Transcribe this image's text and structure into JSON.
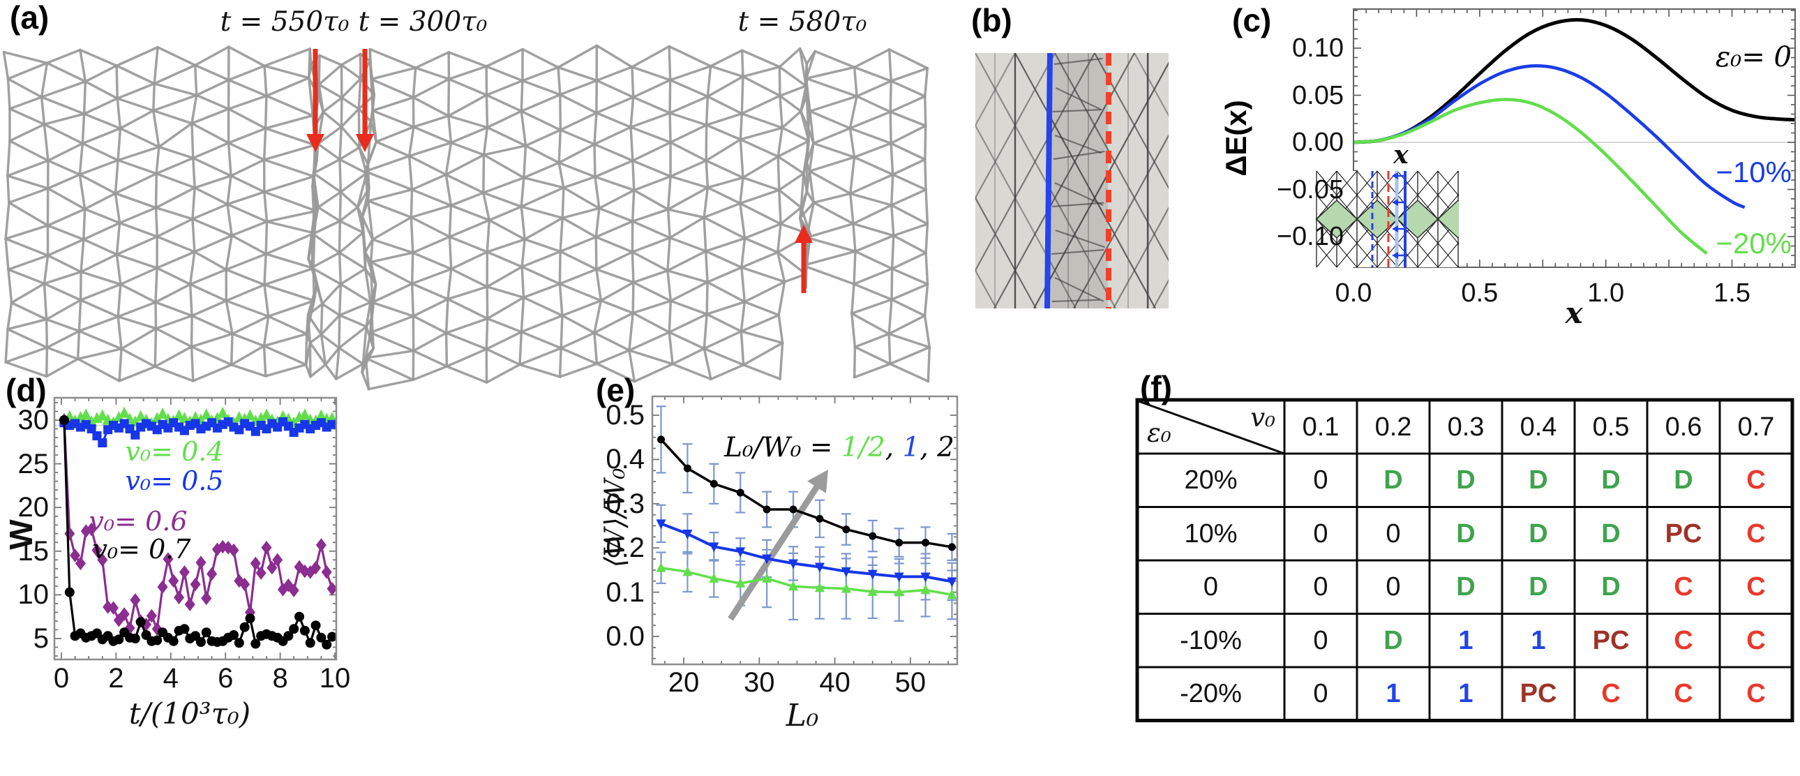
{
  "figure": {
    "background": "#ffffff"
  },
  "panels": {
    "a": {
      "label": "(a)",
      "time_labels": [
        "t = 550τ₀",
        "t = 300τ₀",
        "t = 580τ₀"
      ],
      "mesh_color": "#9a9a9a",
      "arrow_color": "#e82c1d"
    },
    "b": {
      "label": "(b)",
      "solid_line_color": "#2543ee",
      "dashed_line_color": "#f2402a",
      "paper_color": "#d9d8d3",
      "crease_color": "#474747"
    },
    "c": {
      "label": "(c)",
      "ylabel": "ΔE(x)",
      "xlabel": "x",
      "curve_labels": [
        {
          "text": "ε₀= 0",
          "color": "#000000"
        },
        {
          "text": "−10%",
          "color": "#1a3ce8"
        },
        {
          "text": "−20%",
          "color": "#62de4c"
        }
      ],
      "inset": {
        "x_marker_label": "x",
        "diamond_fill": "#b5d8ae",
        "lattice_color": "#1a1a1a",
        "blue_line_color": "#2040f0",
        "light_blue_color": "#aac4f2",
        "red_dashed_color": "#e83a2a"
      }
    },
    "d": {
      "label": "(d)",
      "ylabel": "W",
      "xlabel": "t/(10³τ₀)",
      "legend": [
        {
          "text": "v₀= 0.4",
          "color": "#62de4c"
        },
        {
          "text": "v₀= 0.5",
          "color": "#1636e8"
        },
        {
          "text": "v₀= 0.6",
          "color": "#8b2d91"
        },
        {
          "text": "v₀= 0.7",
          "color": "#000000"
        }
      ]
    },
    "e": {
      "label": "(e)",
      "ylabel": "⟨W⟩/W₀",
      "xlabel": "L₀",
      "legend_parts": [
        {
          "text": "L₀/W₀ = ",
          "color": "#000000"
        },
        {
          "text": "1/2",
          "color": "#62de4c"
        },
        {
          "text": ", ",
          "color": "#000000"
        },
        {
          "text": "1",
          "color": "#2145e6"
        },
        {
          "text": ", 2",
          "color": "#000000"
        }
      ],
      "errorbar_color": "#7b97cf",
      "arrow_color": "#9b9b9b"
    },
    "f": {
      "label": "(f)",
      "corner_top": "v₀",
      "corner_bottom": "ε₀"
    }
  },
  "chart_data": [
    {
      "id": "panel-c",
      "type": "line",
      "xlabel": "x",
      "ylabel": "ΔE(x)",
      "xlim": [
        0,
        1.75
      ],
      "ylim": [
        -0.135,
        0.142
      ],
      "xticks": [
        0,
        0.5,
        1.0,
        1.5
      ],
      "xtick_labels": [
        "0.0",
        "0.5",
        "1.0",
        "1.5"
      ],
      "yticks": [
        0.1,
        0.05,
        0.0,
        -0.05,
        -0.1
      ],
      "ytick_labels": [
        "0.10",
        "0.05",
        "0.00",
        "−0.05",
        "−0.10"
      ],
      "grid": "zero-line-only",
      "legend_position": "labels-right",
      "series": [
        {
          "name": "ε₀= 0",
          "color": "#000000",
          "points": [
            [
              0,
              0
            ],
            [
              0.1,
              0.002
            ],
            [
              0.2,
              0.01
            ],
            [
              0.3,
              0.026
            ],
            [
              0.4,
              0.048
            ],
            [
              0.5,
              0.073
            ],
            [
              0.6,
              0.097
            ],
            [
              0.7,
              0.116
            ],
            [
              0.8,
              0.127
            ],
            [
              0.9,
              0.13
            ],
            [
              1.0,
              0.124
            ],
            [
              1.1,
              0.11
            ],
            [
              1.2,
              0.09
            ],
            [
              1.3,
              0.068
            ],
            [
              1.4,
              0.048
            ],
            [
              1.5,
              0.034
            ],
            [
              1.6,
              0.027
            ],
            [
              1.7,
              0.0245
            ],
            [
              1.75,
              0.024
            ]
          ]
        },
        {
          "name": "−10%",
          "color": "#1a3ce8",
          "points": [
            [
              0,
              0
            ],
            [
              0.1,
              0.002
            ],
            [
              0.2,
              0.01
            ],
            [
              0.3,
              0.024
            ],
            [
              0.4,
              0.044
            ],
            [
              0.5,
              0.062
            ],
            [
              0.6,
              0.075
            ],
            [
              0.7,
              0.081
            ],
            [
              0.8,
              0.079
            ],
            [
              0.9,
              0.069
            ],
            [
              1.0,
              0.052
            ],
            [
              1.1,
              0.03
            ],
            [
              1.2,
              0.006
            ],
            [
              1.3,
              -0.02
            ],
            [
              1.4,
              -0.045
            ],
            [
              1.5,
              -0.063
            ],
            [
              1.55,
              -0.069
            ]
          ]
        },
        {
          "name": "−20%",
          "color": "#62de4c",
          "points": [
            [
              0,
              0
            ],
            [
              0.1,
              0.002
            ],
            [
              0.2,
              0.009
            ],
            [
              0.3,
              0.021
            ],
            [
              0.4,
              0.034
            ],
            [
              0.5,
              0.042
            ],
            [
              0.6,
              0.0455
            ],
            [
              0.7,
              0.042
            ],
            [
              0.8,
              0.03
            ],
            [
              0.9,
              0.011
            ],
            [
              1.0,
              -0.013
            ],
            [
              1.1,
              -0.04
            ],
            [
              1.2,
              -0.068
            ],
            [
              1.3,
              -0.096
            ],
            [
              1.4,
              -0.118
            ]
          ]
        }
      ]
    },
    {
      "id": "panel-d",
      "type": "scatter-line",
      "xlabel": "t/(10³τ₀)",
      "ylabel": "W",
      "xlim": [
        -0.25,
        10.1
      ],
      "ylim": [
        2.6,
        32.5
      ],
      "xticks": [
        0,
        2,
        4,
        6,
        8,
        10
      ],
      "yticks": [
        5,
        10,
        15,
        20,
        25,
        30
      ],
      "reference_line_y": 29.4,
      "t0": 0.1,
      "dt": 0.2,
      "series": [
        {
          "name": "v₀= 0.4",
          "color": "#62de4c",
          "marker": "triangle-up",
          "values": [
            30.1,
            30.4,
            29.9,
            30.3,
            30.6,
            29.8,
            30.2,
            30.5,
            30.0,
            29.7,
            30.3,
            30.8,
            30.1,
            29.8,
            30.4,
            30.0,
            29.6,
            30.2,
            30.7,
            30.1,
            29.9,
            30.5,
            30.2,
            29.8,
            30.3,
            30.0,
            30.6,
            29.9,
            30.2,
            30.8,
            30.0,
            29.7,
            30.3,
            30.1,
            30.5,
            29.9,
            30.2,
            30.6,
            30.0,
            29.8,
            30.4,
            30.1,
            29.7,
            30.3,
            30.6,
            30.0,
            29.9,
            30.5,
            30.1,
            30.2
          ]
        },
        {
          "name": "v₀= 0.5",
          "color": "#1636e8",
          "marker": "square",
          "values": [
            29.7,
            29.4,
            29.6,
            29.2,
            29.5,
            29.0,
            28.2,
            27.4,
            28.9,
            29.4,
            29.1,
            29.6,
            29.0,
            28.3,
            29.2,
            29.6,
            29.3,
            28.9,
            29.5,
            29.1,
            29.7,
            29.2,
            28.8,
            29.4,
            29.6,
            29.0,
            29.3,
            29.7,
            29.1,
            29.5,
            29.8,
            29.2,
            28.9,
            29.6,
            29.3,
            28.7,
            29.4,
            29.0,
            29.6,
            29.2,
            29.8,
            29.3,
            28.6,
            29.1,
            29.5,
            29.0,
            29.4,
            29.7,
            29.2,
            29.5
          ]
        },
        {
          "name": "v₀= 0.6",
          "color": "#8b2d91",
          "marker": "diamond",
          "values": [
            30.0,
            17.0,
            14.5,
            13.6,
            17.3,
            17.5,
            15.1,
            14.0,
            8.6,
            8.5,
            7.1,
            7.8,
            6.2,
            9.4,
            7.0,
            6.6,
            7.6,
            6.1,
            10.9,
            14.1,
            11.6,
            9.7,
            12.6,
            8.9,
            11.2,
            13.7,
            9.6,
            12.4,
            15.2,
            15.5,
            15.4,
            15.1,
            11.6,
            11.2,
            8.0,
            13.6,
            12.5,
            15.4,
            13.1,
            14.0,
            10.6,
            11.1,
            10.5,
            13.2,
            12.7,
            12.6,
            13.1,
            15.7,
            12.6,
            10.7
          ]
        },
        {
          "name": "v₀= 0.7",
          "color": "#000000",
          "marker": "circle",
          "values": [
            30.0,
            10.3,
            5.3,
            5.6,
            5.1,
            5.3,
            5.6,
            4.9,
            5.3,
            4.7,
            4.9,
            5.7,
            5.1,
            5.0,
            6.9,
            5.4,
            4.7,
            4.8,
            5.7,
            5.1,
            4.7,
            5.9,
            6.1,
            5.0,
            5.3,
            4.6,
            5.7,
            4.7,
            4.6,
            4.7,
            5.1,
            5.4,
            4.5,
            6.3,
            7.3,
            4.4,
            5.3,
            5.5,
            5.3,
            5.1,
            4.7,
            5.3,
            6.1,
            7.5,
            5.9,
            4.5,
            6.5,
            5.1,
            4.3,
            5.2
          ]
        }
      ]
    },
    {
      "id": "panel-e",
      "type": "line-errorbar",
      "xlabel": "L₀",
      "ylabel": "⟨W⟩/W₀",
      "xlim": [
        15,
        57.5
      ],
      "ylim": [
        -0.06,
        0.54
      ],
      "xticks": [
        20,
        30,
        40,
        50
      ],
      "yticks": [
        0.5,
        0.4,
        0.3,
        0.2,
        0.1,
        0.0
      ],
      "ytick_labels": [
        "0.5",
        "0.4",
        "0.3",
        "0.2",
        "0.1",
        "0.0"
      ],
      "x": [
        17,
        20.5,
        24,
        27.5,
        31,
        34.5,
        38,
        41.5,
        45,
        48.5,
        52,
        55.5
      ],
      "series": [
        {
          "name": "L₀/W₀ = 1/2",
          "color": "#62de4c",
          "marker": "triangle-up",
          "values": [
            0.155,
            0.146,
            0.131,
            0.12,
            0.131,
            0.113,
            0.11,
            0.108,
            0.101,
            0.1,
            0.105,
            0.094
          ],
          "errors": [
            0.035,
            0.045,
            0.042,
            0.05,
            0.065,
            0.075,
            0.07,
            0.068,
            0.06,
            0.065,
            0.06,
            0.055
          ]
        },
        {
          "name": "L₀/W₀ = 1",
          "color": "#1636e8",
          "marker": "triangle-down",
          "values": [
            0.255,
            0.232,
            0.203,
            0.192,
            0.176,
            0.165,
            0.157,
            0.147,
            0.141,
            0.135,
            0.135,
            0.124
          ],
          "errors": [
            0.042,
            0.045,
            0.032,
            0.03,
            0.042,
            0.038,
            0.045,
            0.04,
            0.038,
            0.04,
            0.052,
            0.042
          ]
        },
        {
          "name": "L₀/W₀ = 2",
          "color": "#000000",
          "marker": "circle",
          "values": [
            0.445,
            0.38,
            0.345,
            0.325,
            0.287,
            0.287,
            0.266,
            0.242,
            0.227,
            0.212,
            0.212,
            0.202
          ],
          "errors": [
            0.075,
            0.055,
            0.045,
            0.045,
            0.04,
            0.04,
            0.042,
            0.035,
            0.035,
            0.032,
            0.035,
            0.03
          ]
        }
      ]
    },
    {
      "id": "panel-f",
      "type": "table",
      "corner_top": "v₀",
      "corner_bottom": "ε₀",
      "col_headers": [
        "0.1",
        "0.2",
        "0.3",
        "0.4",
        "0.5",
        "0.6",
        "0.7"
      ],
      "row_headers": [
        "20%",
        "10%",
        "0",
        "-10%",
        "-20%"
      ],
      "cells": [
        [
          "0",
          "D",
          "D",
          "D",
          "D",
          "D",
          "C"
        ],
        [
          "0",
          "0",
          "D",
          "D",
          "D",
          "PC",
          "C"
        ],
        [
          "0",
          "0",
          "D",
          "D",
          "D",
          "C",
          "C"
        ],
        [
          "0",
          "D",
          "1",
          "1",
          "PC",
          "C",
          "C"
        ],
        [
          "0",
          "1",
          "1",
          "PC",
          "C",
          "C",
          "C"
        ]
      ],
      "cell_colors": {
        "0": "#111111",
        "D": "#3fa34d",
        "C": "#e8392b",
        "PC": "#9e3226",
        "1": "#2145e6"
      }
    }
  ]
}
